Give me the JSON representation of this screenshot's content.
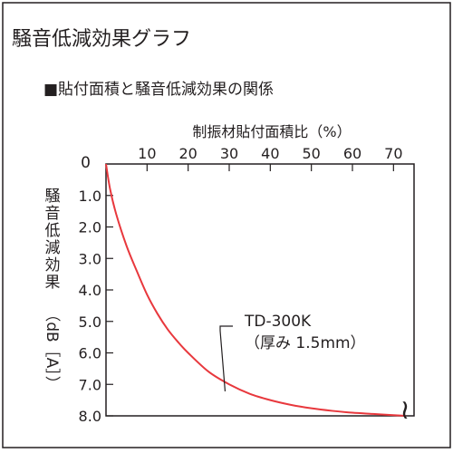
{
  "page": {
    "title": "騒音低減効果グラフ",
    "subtitle": "■貼付面積と騒音低減効果の関係"
  },
  "chart_data": {
    "type": "line",
    "xlabel": "制振材貼付面積比（%）",
    "ylabel": "騒音低減効果",
    "ylabel_unit": "（dB［A］）",
    "xlim": [
      0,
      75
    ],
    "ylim": [
      0,
      8.0
    ],
    "y_inverted": true,
    "x_axis_position": "top",
    "x_ticks": [
      10,
      20,
      30,
      40,
      50,
      60,
      70
    ],
    "x_tick_labels": [
      "10",
      "20",
      "30",
      "40",
      "50",
      "60",
      "70"
    ],
    "y_ticks": [
      0,
      1.0,
      2.0,
      3.0,
      4.0,
      5.0,
      6.0,
      7.0,
      8.0
    ],
    "y_tick_labels": [
      "0",
      "1.0",
      "2.0",
      "3.0",
      "4.0",
      "5.0",
      "6.0",
      "7.0",
      "8.0"
    ],
    "grid": false,
    "series": [
      {
        "name": "TD-300K",
        "color": "#e8383d",
        "x": [
          0,
          1,
          2.5,
          5,
          7.5,
          10,
          12.5,
          15,
          17.5,
          20,
          25,
          30,
          35,
          40,
          45,
          50,
          55,
          60,
          65,
          70,
          73
        ],
        "y": [
          0,
          0.8,
          1.6,
          2.6,
          3.4,
          4.15,
          4.75,
          5.25,
          5.65,
          6.0,
          6.6,
          7.0,
          7.3,
          7.5,
          7.65,
          7.76,
          7.84,
          7.9,
          7.94,
          7.98,
          8.0
        ]
      }
    ],
    "annotations": [
      {
        "lines": [
          "TD-300K",
          "（厚み 1.5mm）"
        ],
        "points_to": {
          "x": 29,
          "y": 7.22
        }
      }
    ],
    "axis_break": "≀"
  }
}
